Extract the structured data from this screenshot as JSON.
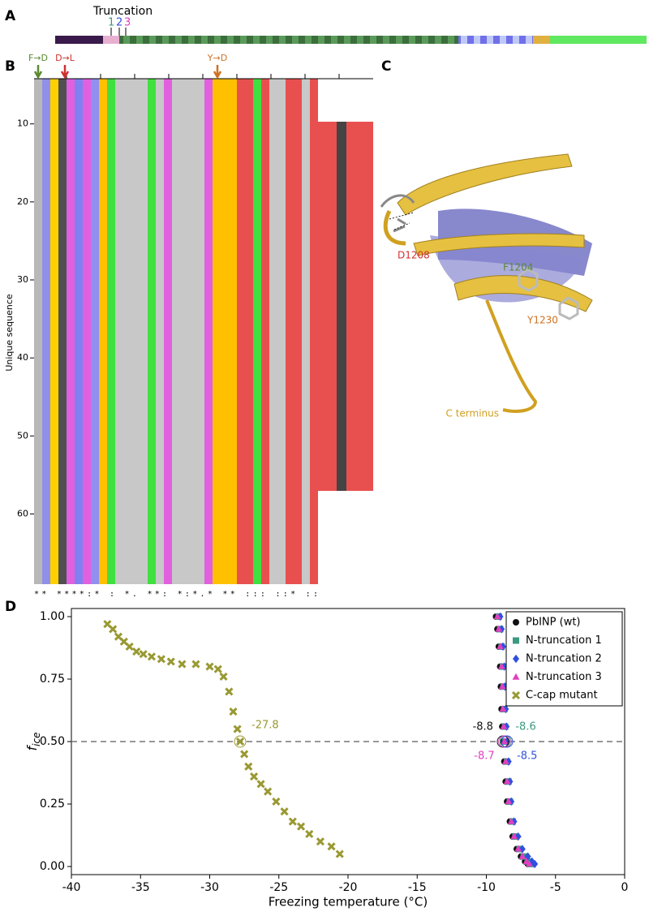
{
  "panels": {
    "a": "A",
    "b": "B",
    "c": "C",
    "d": "D"
  },
  "truncation": {
    "title": "Truncation",
    "labels": [
      "1",
      "2",
      "3"
    ],
    "colors": [
      "#3a9a80",
      "#3050e0",
      "#e040c0"
    ]
  },
  "alignment": {
    "mutations": [
      "F→D",
      "D→L",
      "Y→D"
    ],
    "mutation_colors": [
      "#5a8a30",
      "#d03030",
      "#d07020"
    ],
    "ylabel": "Unique sequence",
    "ylim": [
      4,
      69
    ],
    "yticks": [
      10,
      20,
      30,
      40,
      50,
      60
    ],
    "conservation": "** ****:* : *. **: *:*.* ** ::: ::* ::"
  },
  "structure": {
    "labels": [
      "D1208",
      "F1204",
      "Y1230",
      "C terminus"
    ],
    "colors": [
      "#d03030",
      "#5a8a30",
      "#d07020",
      "#d0a020"
    ]
  },
  "chart_data": {
    "type": "scatter",
    "xlabel": "Freezing temperature (°C)",
    "ylabel": "f",
    "ylabel_subscript": "ice",
    "xlim": [
      -40,
      0
    ],
    "xticks": [
      -40,
      -35,
      -30,
      -25,
      -20,
      -15,
      -10,
      -5,
      0
    ],
    "ylim": [
      0,
      1
    ],
    "yticks": [
      {
        "value": 0,
        "label": "0.00"
      },
      {
        "value": 0.25,
        "label": "0.25"
      },
      {
        "value": 0.5,
        "label": "0.50"
      },
      {
        "value": 0.75,
        "label": "0.75"
      },
      {
        "value": 1,
        "label": "1.00"
      }
    ],
    "reference_line": 0.5,
    "legend": "upper right",
    "series": [
      {
        "name": "PbINP (wt)",
        "color": "#111111",
        "marker": "circle",
        "x": [
          -9.3,
          -9.2,
          -9.1,
          -9.0,
          -8.95,
          -8.9,
          -8.85,
          -8.8,
          -8.7,
          -8.6,
          -8.5,
          -8.3,
          -8.1,
          -7.8,
          -7.5,
          -7.2,
          -7.0
        ],
        "values": [
          1.0,
          0.95,
          0.88,
          0.8,
          0.72,
          0.63,
          0.56,
          0.5,
          0.42,
          0.34,
          0.26,
          0.18,
          0.12,
          0.07,
          0.04,
          0.02,
          0.01
        ]
      },
      {
        "name": "N-truncation 1",
        "color": "#3a9a80",
        "marker": "square",
        "x": [
          -9.1,
          -9.0,
          -8.9,
          -8.8,
          -8.75,
          -8.7,
          -8.65,
          -8.6,
          -8.5,
          -8.4,
          -8.3,
          -8.1,
          -7.9,
          -7.6,
          -7.3,
          -7.0,
          -6.8
        ],
        "values": [
          1.0,
          0.95,
          0.88,
          0.8,
          0.72,
          0.63,
          0.56,
          0.5,
          0.42,
          0.34,
          0.26,
          0.18,
          0.12,
          0.07,
          0.04,
          0.02,
          0.01
        ]
      },
      {
        "name": "N-truncation 2",
        "color": "#3050e0",
        "marker": "diamond",
        "x": [
          -9.0,
          -8.9,
          -8.8,
          -8.7,
          -8.65,
          -8.6,
          -8.55,
          -8.5,
          -8.4,
          -8.3,
          -8.2,
          -8.0,
          -7.7,
          -7.4,
          -7.0,
          -6.7,
          -6.5
        ],
        "values": [
          1.0,
          0.95,
          0.88,
          0.8,
          0.72,
          0.63,
          0.56,
          0.5,
          0.42,
          0.34,
          0.26,
          0.18,
          0.12,
          0.07,
          0.04,
          0.02,
          0.01
        ]
      },
      {
        "name": "N-truncation 3",
        "color": "#e040c0",
        "marker": "triangle",
        "x": [
          -9.2,
          -9.1,
          -9.0,
          -8.9,
          -8.85,
          -8.8,
          -8.75,
          -8.7,
          -8.6,
          -8.5,
          -8.4,
          -8.2,
          -8.0,
          -7.7,
          -7.4,
          -7.1,
          -6.9
        ],
        "values": [
          1.0,
          0.95,
          0.88,
          0.8,
          0.72,
          0.63,
          0.56,
          0.5,
          0.42,
          0.34,
          0.26,
          0.18,
          0.12,
          0.07,
          0.04,
          0.02,
          0.01
        ]
      },
      {
        "name": "C-cap mutant",
        "color": "#999933",
        "marker": "x",
        "x": [
          -37.4,
          -37.0,
          -36.6,
          -36.2,
          -35.8,
          -35.3,
          -34.8,
          -34.2,
          -33.5,
          -32.8,
          -32.0,
          -31.0,
          -30.0,
          -29.4,
          -29.0,
          -28.6,
          -28.3,
          -28.0,
          -27.8,
          -27.5,
          -27.2,
          -26.8,
          -26.3,
          -25.8,
          -25.2,
          -24.6,
          -24.0,
          -23.4,
          -22.8,
          -22.0,
          -21.2,
          -20.6
        ],
        "values": [
          0.97,
          0.95,
          0.92,
          0.9,
          0.88,
          0.86,
          0.85,
          0.84,
          0.83,
          0.82,
          0.81,
          0.81,
          0.8,
          0.79,
          0.76,
          0.7,
          0.62,
          0.55,
          0.5,
          0.45,
          0.4,
          0.36,
          0.33,
          0.3,
          0.26,
          0.22,
          0.18,
          0.16,
          0.13,
          0.1,
          0.08,
          0.05
        ]
      }
    ],
    "annotations": [
      {
        "x": -27.8,
        "color": "#999933"
      },
      {
        "x": -8.8,
        "color": "#111111"
      },
      {
        "x": -8.6,
        "color": "#3a9a80"
      },
      {
        "x": -8.7,
        "color": "#e040c0"
      },
      {
        "x": -8.5,
        "color": "#3050e0"
      }
    ]
  }
}
